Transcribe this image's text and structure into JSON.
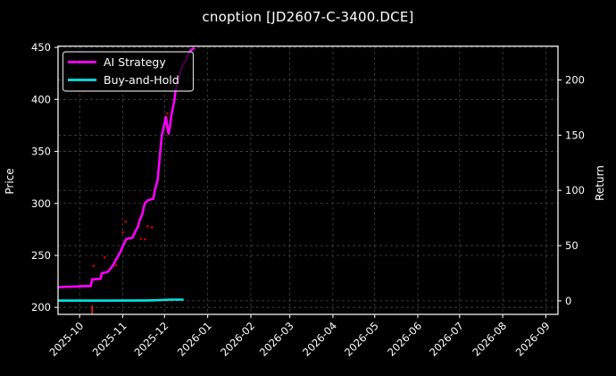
{
  "title": "cnoption [JD2607-C-3400.DCE]",
  "colors": {
    "background": "#000000",
    "ai_strategy": "#ff00ff",
    "buy_and_hold": "#00e5e6",
    "signal_dots": "#cc0000",
    "event_tick": "#ff1a1a",
    "grid": "#454545",
    "axis": "#efefef",
    "text": "#ffffff",
    "legend_border": "#d0d0d0"
  },
  "legend": {
    "entries": [
      {
        "label": "AI Strategy",
        "series": "ai_strategy"
      },
      {
        "label": "Buy-and-Hold",
        "series": "buy_and_hold"
      }
    ]
  },
  "axes": {
    "left": {
      "label": "Price",
      "ticks": [
        "200",
        "250",
        "300",
        "350",
        "400",
        "450"
      ]
    },
    "right": {
      "label": "Return",
      "ticks": [
        "0",
        "50",
        "100",
        "150",
        "200"
      ]
    },
    "bottom": {
      "ticks": [
        "2025-10",
        "2025-11",
        "2025-12",
        "2026-01",
        "2026-02",
        "2026-03",
        "2026-04",
        "2026-05",
        "2026-06",
        "2026-07",
        "2026-08",
        "2026-09"
      ]
    }
  },
  "chart_data": {
    "type": "line",
    "title": "cnoption [JD2607-C-3400.DCE]",
    "xlabel": "",
    "ylabel_left": "Price",
    "ylabel_right": "Return",
    "x_range": [
      "2025-09-16",
      "2026-09-09"
    ],
    "ylim_left": [
      194,
      451
    ],
    "ylim_right": [
      -11,
      231
    ],
    "grid": true,
    "legend_position": "upper left",
    "x_tick_labels": [
      "2025-10",
      "2025-11",
      "2025-12",
      "2026-01",
      "2026-02",
      "2026-03",
      "2026-04",
      "2026-05",
      "2026-06",
      "2026-07",
      "2026-08",
      "2026-09"
    ],
    "series": [
      {
        "name": "AI Strategy",
        "axis": "left",
        "color_key": "ai_strategy",
        "points": [
          [
            "2025-09-16",
            219.5
          ],
          [
            "2025-09-26",
            220
          ],
          [
            "2025-10-05",
            220.5
          ],
          [
            "2025-10-09",
            220.5
          ],
          [
            "2025-10-10",
            227
          ],
          [
            "2025-10-16",
            227.5
          ],
          [
            "2025-10-17",
            233
          ],
          [
            "2025-10-21",
            234
          ],
          [
            "2025-10-23",
            237
          ],
          [
            "2025-10-25",
            240.5
          ],
          [
            "2025-10-28",
            248
          ],
          [
            "2025-10-30",
            252.5
          ],
          [
            "2025-11-01",
            259
          ],
          [
            "2025-11-03",
            264.5
          ],
          [
            "2025-11-04",
            266
          ],
          [
            "2025-11-08",
            267
          ],
          [
            "2025-11-10",
            273
          ],
          [
            "2025-11-12",
            278
          ],
          [
            "2025-11-13",
            283.5
          ],
          [
            "2025-11-15",
            289.5
          ],
          [
            "2025-11-16",
            296
          ],
          [
            "2025-11-17",
            300.5
          ],
          [
            "2025-11-19",
            303
          ],
          [
            "2025-11-23",
            304.5
          ],
          [
            "2025-11-24",
            312.5
          ],
          [
            "2025-11-26",
            322
          ],
          [
            "2025-11-27",
            336.5
          ],
          [
            "2025-11-28",
            351
          ],
          [
            "2025-11-29",
            365
          ],
          [
            "2025-12-01",
            377
          ],
          [
            "2025-12-02",
            383
          ],
          [
            "2025-12-03",
            373
          ],
          [
            "2025-12-04",
            367
          ],
          [
            "2025-12-05",
            375
          ],
          [
            "2025-12-06",
            385.5
          ],
          [
            "2025-12-08",
            398.5
          ],
          [
            "2025-12-09",
            409.5
          ],
          [
            "2025-12-11",
            418
          ],
          [
            "2025-12-13",
            430
          ],
          [
            "2025-12-16",
            437
          ],
          [
            "2025-12-18",
            444
          ],
          [
            "2025-12-20",
            447.5
          ],
          [
            "2025-12-22",
            449
          ]
        ]
      },
      {
        "name": "Buy-and-Hold",
        "axis": "left",
        "color_key": "buy_and_hold",
        "points": [
          [
            "2025-09-16",
            206.5
          ],
          [
            "2025-10-20",
            206.5
          ],
          [
            "2025-11-18",
            206.7
          ],
          [
            "2025-11-28",
            207
          ],
          [
            "2025-12-06",
            207.5
          ],
          [
            "2025-12-14",
            207.5
          ]
        ]
      }
    ],
    "scatter": [
      {
        "name": "trade-signal-dots",
        "color_key": "signal_dots",
        "points": [
          [
            "2025-10-11",
            240
          ],
          [
            "2025-10-19",
            248
          ],
          [
            "2025-10-27",
            240.5
          ],
          [
            "2025-11-01",
            272
          ],
          [
            "2025-11-03",
            282.5
          ],
          [
            "2025-11-14",
            266
          ],
          [
            "2025-11-17",
            265.5
          ],
          [
            "2025-11-19",
            278
          ],
          [
            "2025-11-22",
            277
          ],
          [
            "2025-12-03",
            386.5
          ]
        ]
      }
    ],
    "event_ticks": [
      {
        "date": "2025-10-10",
        "price_top": 202,
        "price_bottom": 193.5
      }
    ]
  }
}
